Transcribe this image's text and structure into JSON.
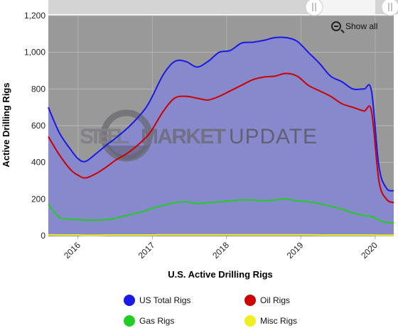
{
  "watermark": {
    "text": "STEEL MARKET UPDATE",
    "colors": {
      "steel": "#7a7a82",
      "market": "#6a6a6f",
      "update": "#55555a"
    }
  },
  "show_all_label": "Show all",
  "legend_items": [
    {
      "label": "US Total Rigs",
      "color": "#1a1ae6"
    },
    {
      "label": "Oil Rigs",
      "color": "#cc0000"
    },
    {
      "label": "Gas Rigs",
      "color": "#22cc22"
    },
    {
      "label": "Misc Rigs",
      "color": "#eeee22"
    }
  ],
  "chart_data": {
    "type": "line",
    "title": "",
    "xlabel": "U.S. Active Drilling Rigs",
    "ylabel": "Active Drilling Rigs",
    "ylim": [
      0,
      1200
    ],
    "xlim": [
      2015.6,
      2020.25
    ],
    "yticks": [
      "0",
      "200",
      "400",
      "600",
      "800",
      "1,000",
      "1,200"
    ],
    "xticks": [
      "2016",
      "2017",
      "2018",
      "2019",
      "2020"
    ],
    "plot_background": "#999999",
    "area_fill": "#8888cc",
    "grid": true,
    "legend_position": "bottom",
    "x": [
      2015.6,
      2015.75,
      2015.9,
      2016.0,
      2016.1,
      2016.25,
      2016.4,
      2016.5,
      2016.7,
      2016.9,
      2017.0,
      2017.15,
      2017.3,
      2017.45,
      2017.6,
      2017.75,
      2017.9,
      2018.05,
      2018.2,
      2018.35,
      2018.5,
      2018.65,
      2018.8,
      2018.95,
      2019.1,
      2019.25,
      2019.4,
      2019.55,
      2019.7,
      2019.85,
      2019.95,
      2020.05,
      2020.15,
      2020.25
    ],
    "series": [
      {
        "name": "US Total Rigs",
        "color": "#1a1ae6",
        "values": [
          700,
          560,
          470,
          420,
          405,
          450,
          500,
          530,
          600,
          690,
          760,
          880,
          950,
          950,
          920,
          950,
          1000,
          1010,
          1050,
          1055,
          1065,
          1080,
          1080,
          1060,
          1000,
          940,
          870,
          840,
          800,
          800,
          790,
          380,
          260,
          245
        ]
      },
      {
        "name": "Oil Rigs",
        "color": "#cc0000",
        "values": [
          540,
          440,
          360,
          330,
          315,
          340,
          380,
          410,
          460,
          530,
          580,
          680,
          750,
          760,
          750,
          740,
          760,
          790,
          820,
          850,
          865,
          870,
          885,
          870,
          820,
          790,
          760,
          720,
          700,
          680,
          680,
          300,
          200,
          180
        ]
      },
      {
        "name": "Gas Rigs",
        "color": "#22cc22",
        "values": [
          170,
          100,
          90,
          88,
          85,
          85,
          88,
          95,
          115,
          135,
          150,
          165,
          180,
          185,
          175,
          180,
          185,
          190,
          195,
          195,
          190,
          195,
          200,
          190,
          185,
          175,
          160,
          145,
          125,
          110,
          105,
          85,
          72,
          70
        ]
      },
      {
        "name": "Misc Rigs",
        "color": "#eeee22",
        "values": [
          5,
          4,
          4,
          4,
          3,
          3,
          4,
          4,
          4,
          4,
          4,
          5,
          5,
          5,
          5,
          5,
          5,
          5,
          5,
          5,
          5,
          5,
          5,
          5,
          5,
          4,
          4,
          4,
          4,
          4,
          4,
          3,
          3,
          3
        ]
      }
    ]
  }
}
